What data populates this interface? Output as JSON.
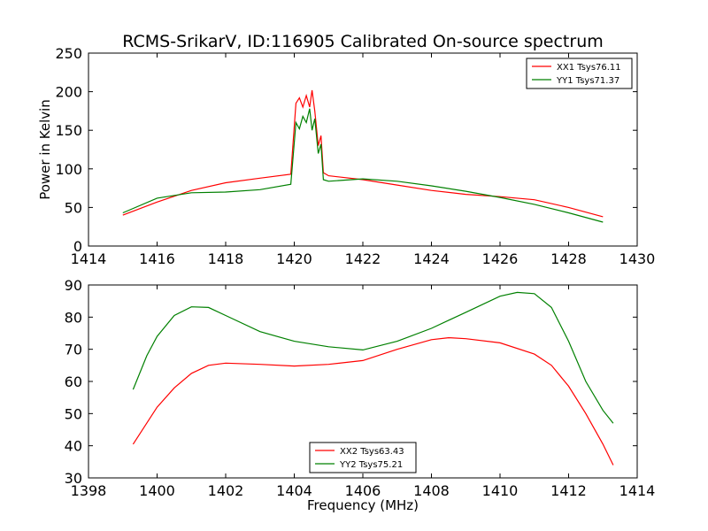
{
  "figure": {
    "title": "RCMS-SrikarV, ID:116905 Calibrated On-source spectrum"
  },
  "chart_data": [
    {
      "type": "line",
      "title": "RCMS-SrikarV, ID:116905 Calibrated On-source spectrum",
      "xlabel": "",
      "ylabel": "Power in Kelvin",
      "xlim": [
        1414,
        1430
      ],
      "ylim": [
        0,
        250
      ],
      "xticks": [
        1414,
        1416,
        1418,
        1420,
        1422,
        1424,
        1426,
        1428,
        1430
      ],
      "yticks": [
        0,
        50,
        100,
        150,
        200,
        250
      ],
      "grid": false,
      "legend": "top-right",
      "series": [
        {
          "name": "XX1 Tsys76.11",
          "color": "#ff0000",
          "x": [
            1415,
            1416,
            1417,
            1418,
            1419,
            1419.9,
            1420.05,
            1420.15,
            1420.25,
            1420.35,
            1420.45,
            1420.52,
            1420.6,
            1420.7,
            1420.78,
            1420.85,
            1421,
            1422,
            1423,
            1424,
            1425,
            1426,
            1427,
            1428,
            1429
          ],
          "y": [
            40,
            57,
            72,
            82,
            88,
            93,
            185,
            192,
            180,
            195,
            180,
            202,
            175,
            130,
            143,
            95,
            91,
            86,
            79,
            72,
            67,
            64,
            60,
            50,
            38
          ]
        },
        {
          "name": "YY1 Tsys71.37",
          "color": "#008000",
          "x": [
            1415,
            1416,
            1417,
            1418,
            1419,
            1419.9,
            1420.05,
            1420.15,
            1420.25,
            1420.35,
            1420.45,
            1420.52,
            1420.6,
            1420.7,
            1420.78,
            1420.85,
            1421,
            1422,
            1423,
            1424,
            1425,
            1426,
            1427,
            1428,
            1429
          ],
          "y": [
            43,
            62,
            69,
            70,
            73,
            80,
            160,
            152,
            168,
            160,
            178,
            150,
            165,
            120,
            132,
            86,
            84,
            87,
            84,
            78,
            71,
            63,
            54,
            43,
            31
          ]
        }
      ]
    },
    {
      "type": "line",
      "title": "",
      "xlabel": "Frequency (MHz)",
      "ylabel": "",
      "xlim": [
        1398,
        1414
      ],
      "ylim": [
        30,
        90
      ],
      "xticks": [
        1398,
        1400,
        1402,
        1404,
        1406,
        1408,
        1410,
        1412,
        1414
      ],
      "yticks": [
        30,
        40,
        50,
        60,
        70,
        80,
        90
      ],
      "grid": false,
      "legend": "bottom-center",
      "series": [
        {
          "name": "XX2 Tsys63.43",
          "color": "#ff0000",
          "x": [
            1399.3,
            1400,
            1400.5,
            1401,
            1401.5,
            1402,
            1403,
            1404,
            1405,
            1406,
            1407,
            1408,
            1408.5,
            1409,
            1410,
            1411,
            1411.5,
            1412,
            1412.5,
            1413,
            1413.3
          ],
          "y": [
            40.5,
            52,
            58,
            62.5,
            65,
            65.7,
            65.3,
            64.8,
            65.3,
            66.5,
            70,
            73,
            73.6,
            73.3,
            72,
            68.5,
            65,
            58.5,
            50,
            40.5,
            34
          ]
        },
        {
          "name": "YY2 Tsys75.21",
          "color": "#008000",
          "x": [
            1399.3,
            1399.7,
            1400,
            1400.5,
            1401,
            1401.5,
            1402,
            1403,
            1404,
            1405,
            1406,
            1407,
            1408,
            1409,
            1410,
            1410.5,
            1411,
            1411.5,
            1412,
            1412.5,
            1413,
            1413.3
          ],
          "y": [
            57.5,
            68,
            74,
            80.5,
            83.2,
            83,
            80.5,
            75.5,
            72.5,
            70.8,
            69.8,
            72.5,
            76.5,
            81.5,
            86.5,
            87.7,
            87.3,
            83,
            72.5,
            60,
            51,
            47
          ]
        }
      ]
    }
  ]
}
